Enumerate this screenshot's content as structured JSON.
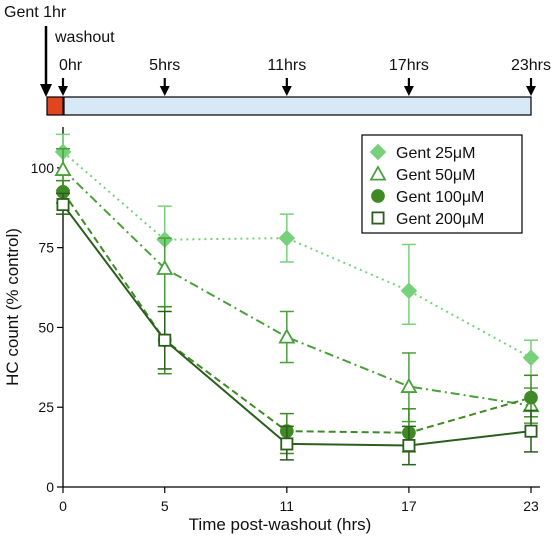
{
  "timeline": {
    "exposure_label": "Gent 1hr",
    "washout_label": "washout",
    "markers": [
      "0hr",
      "5hrs",
      "11hrs",
      "17hrs",
      "23hrs"
    ],
    "colors": {
      "exposure": "#e0451f",
      "washout": "#d7e9f7"
    }
  },
  "chart_data": {
    "type": "line",
    "xlabel": "Time post-washout (hrs)",
    "ylabel": "HC count (% control)",
    "categories": [
      "0",
      "5",
      "11",
      "17",
      "23"
    ],
    "x": [
      0,
      5,
      11,
      17,
      23
    ],
    "xlim": [
      0,
      23.5
    ],
    "ylim": [
      0,
      115
    ],
    "yticks": [
      0,
      25,
      50,
      75,
      100
    ],
    "grid": false,
    "legend_position": "top-right",
    "series": [
      {
        "name": "Gent 25μM",
        "marker": "diamond",
        "filled": true,
        "line_style": "dotted",
        "color": "#77d17a",
        "values": [
          105,
          77.5,
          78,
          61.5,
          40.5
        ],
        "err_low": [
          96,
          67,
          70.5,
          51,
          35
        ],
        "err_high": [
          110.5,
          88,
          85.5,
          76,
          46
        ]
      },
      {
        "name": "Gent 50μM",
        "marker": "triangle",
        "filled": false,
        "line_style": "dashdot",
        "color": "#4aa03a",
        "values": [
          99.5,
          68.5,
          47,
          31.5,
          25.5
        ],
        "err_low": [
          93,
          56.5,
          39,
          20.5,
          20
        ],
        "err_high": [
          106,
          78,
          55,
          42,
          31
        ]
      },
      {
        "name": "Gent 100μM",
        "marker": "circle",
        "filled": true,
        "line_style": "dashed",
        "color": "#3f8a26",
        "values": [
          92.5,
          46,
          17.5,
          17,
          28
        ],
        "err_low": [
          89,
          35.5,
          10.5,
          11,
          22
        ],
        "err_high": [
          96,
          56.5,
          23,
          24.5,
          35
        ]
      },
      {
        "name": "Gent 200μM",
        "marker": "square",
        "filled": false,
        "line_style": "solid",
        "color": "#2b5e1c",
        "values": [
          88.5,
          46,
          13.5,
          13,
          17.5
        ],
        "err_low": [
          85.5,
          37,
          8.5,
          7,
          11
        ],
        "err_high": [
          92,
          55,
          19,
          19,
          24
        ]
      }
    ]
  }
}
